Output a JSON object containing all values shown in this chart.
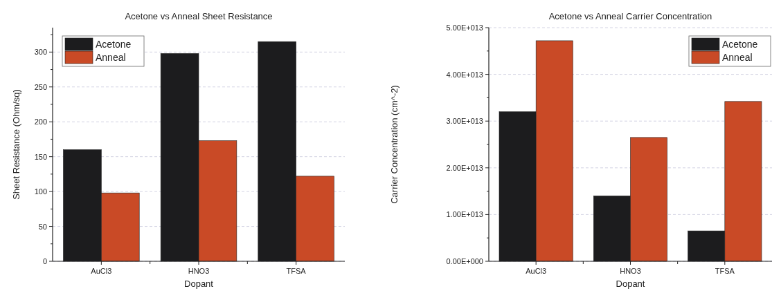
{
  "chart_data": [
    {
      "type": "bar",
      "title": "Acetone vs Anneal Sheet Resistance",
      "xlabel": "Dopant",
      "ylabel": "Sheet Resistance (Ohm/sq)",
      "categories": [
        "AuCl3",
        "HNO3",
        "TFSA"
      ],
      "series": [
        {
          "name": "Acetone",
          "color": "#1c1c1e",
          "values": [
            160,
            298,
            315
          ]
        },
        {
          "name": "Anneal",
          "color": "#c94a26",
          "values": [
            98,
            173,
            122
          ]
        }
      ],
      "ylim": [
        0,
        335
      ],
      "yticks": [
        0,
        50,
        100,
        150,
        200,
        250,
        300
      ],
      "grid": "y",
      "legend": "top left"
    },
    {
      "type": "bar",
      "title": "Acetone vs Anneal Carrier Concentration",
      "xlabel": "Dopant",
      "ylabel": "Carrier Concentration (cm^-2)",
      "categories": [
        "AuCl3",
        "HNO3",
        "TFSA"
      ],
      "series": [
        {
          "name": "Acetone",
          "color": "#1c1c1e",
          "values": [
            32000000000000.0,
            14000000000000.0,
            6500000000000.0
          ]
        },
        {
          "name": "Anneal",
          "color": "#c94a26",
          "values": [
            47200000000000.0,
            26500000000000.0,
            34200000000000.0
          ]
        }
      ],
      "ylim": [
        0,
        50000000000000.0
      ],
      "yticks": [
        {
          "value": 0,
          "label": "0.00E+000"
        },
        {
          "value": 10000000000000.0,
          "label": "1.00E+013"
        },
        {
          "value": 20000000000000.0,
          "label": "2.00E+013"
        },
        {
          "value": 30000000000000.0,
          "label": "3.00E+013"
        },
        {
          "value": 40000000000000.0,
          "label": "4.00E+013"
        },
        {
          "value": 50000000000000.0,
          "label": "5.00E+013"
        }
      ],
      "grid": "y",
      "legend": "top right"
    }
  ]
}
